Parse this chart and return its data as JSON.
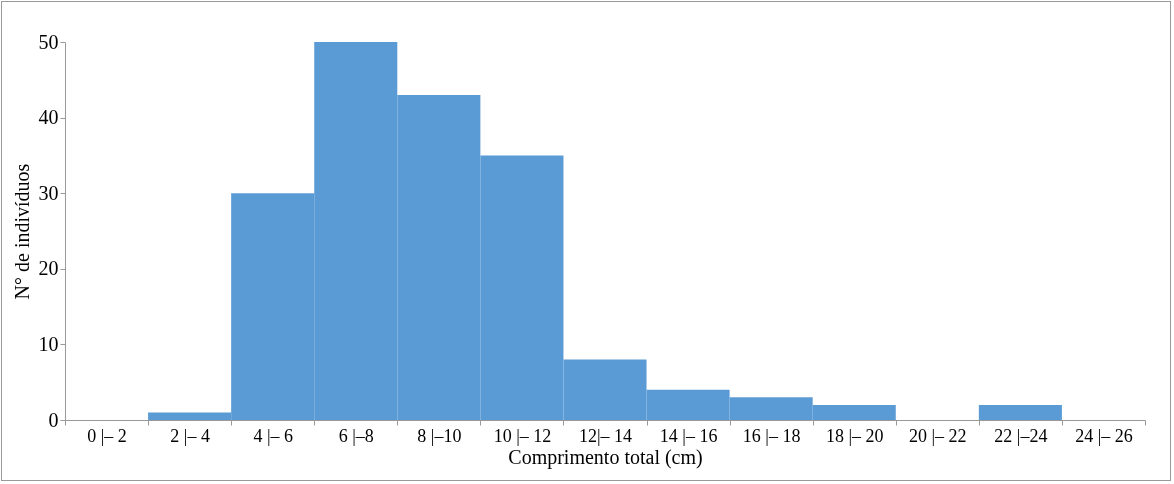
{
  "chart_data": {
    "type": "bar",
    "xlabel": "Comprimento total (cm)",
    "ylabel": "N° de indivíduos",
    "categories": [
      "0 |– 2",
      "2 |– 4",
      "4 |– 6",
      "6 |–8",
      "8 |–10",
      "10 |– 12",
      "12|– 14",
      "14 |– 16",
      "16 |– 18",
      "18 |– 20",
      "20 |– 22",
      "22 |–24",
      "24 |– 26"
    ],
    "values": [
      0,
      1,
      30,
      50,
      43,
      35,
      8,
      4,
      3,
      2,
      0,
      2,
      0
    ],
    "color": "#5b9bd5",
    "ylim": [
      0,
      50
    ],
    "yticks": [
      0,
      10,
      20,
      30,
      40,
      50
    ],
    "grid": false
  }
}
